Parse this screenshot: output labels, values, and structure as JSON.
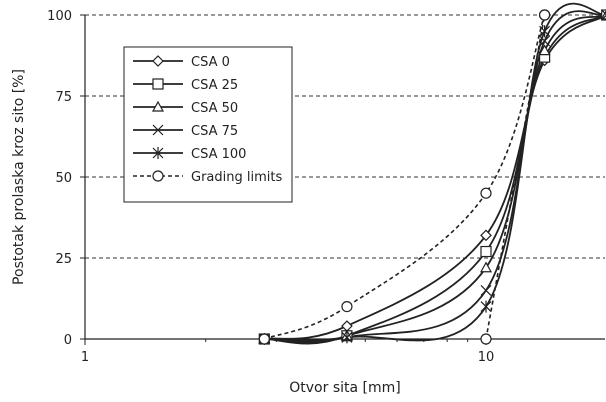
{
  "chart_data": {
    "type": "line",
    "title": "",
    "xlabel": "Otvor sita [mm]",
    "ylabel": "Postotak prolaska kroz sito [%]",
    "x_scale": "log",
    "xlim": [
      1,
      20
    ],
    "ylim": [
      0,
      100
    ],
    "x_ticks": [
      1,
      10
    ],
    "x_tick_labels": [
      "1",
      "10"
    ],
    "y_ticks": [
      0,
      25,
      50,
      75,
      100
    ],
    "y_tick_labels": [
      "0",
      "25",
      "50",
      "75",
      "100"
    ],
    "grid": "horizontal dashed",
    "legend_position": "upper-left",
    "series": [
      {
        "name": "CSA 0",
        "marker": "diamond",
        "dash": false,
        "points": [
          [
            2.8,
            0
          ],
          [
            4.5,
            4
          ],
          [
            10,
            32
          ],
          [
            14,
            86
          ],
          [
            20,
            100
          ]
        ]
      },
      {
        "name": "CSA 25",
        "marker": "square",
        "dash": false,
        "points": [
          [
            2.8,
            0
          ],
          [
            4.5,
            1
          ],
          [
            10,
            27
          ],
          [
            14,
            87
          ],
          [
            20,
            100
          ]
        ]
      },
      {
        "name": "CSA 50",
        "marker": "triangle",
        "dash": false,
        "points": [
          [
            2.8,
            0
          ],
          [
            4.5,
            1
          ],
          [
            10,
            22
          ],
          [
            14,
            89
          ],
          [
            20,
            100
          ]
        ]
      },
      {
        "name": "CSA 75",
        "marker": "x",
        "dash": false,
        "points": [
          [
            2.8,
            0
          ],
          [
            4.5,
            0.5
          ],
          [
            10,
            15
          ],
          [
            14,
            92
          ],
          [
            20,
            100
          ]
        ]
      },
      {
        "name": "CSA 100",
        "marker": "asterisk",
        "dash": false,
        "points": [
          [
            2.8,
            0
          ],
          [
            4.5,
            0.5
          ],
          [
            10,
            10
          ],
          [
            14,
            95
          ],
          [
            20,
            100
          ]
        ]
      },
      {
        "name": "Grading limits",
        "marker": "circle",
        "dash": true,
        "points": [
          [
            2.8,
            0
          ],
          [
            4.5,
            10
          ],
          [
            10,
            45
          ],
          [
            14,
            100
          ]
        ]
      },
      {
        "name": "",
        "marker": "circle",
        "dash": true,
        "points": [
          [
            10,
            0
          ],
          [
            14,
            100
          ]
        ]
      }
    ]
  }
}
